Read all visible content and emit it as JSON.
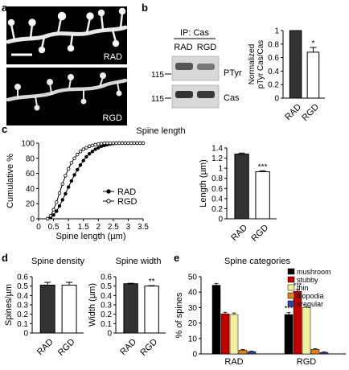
{
  "panels": {
    "a": {
      "label": "a",
      "image_labels": [
        "RAD",
        "RGD"
      ]
    },
    "b": {
      "label": "b",
      "ip_label": "IP: Cas",
      "lane_labels": [
        "RAD",
        "RGD"
      ],
      "blot_labels": [
        "PTyr",
        "Cas"
      ],
      "marker": "115"
    },
    "c": {
      "label": "c",
      "title": "Spine length"
    },
    "d": {
      "label": "d",
      "title_density": "Spine density",
      "title_width": "Spine width"
    },
    "e": {
      "label": "e",
      "title": "Spine categories"
    }
  },
  "colors": {
    "rad_bar": "#333333",
    "rgd_bar": "#ffffff",
    "mushroom": "#000000",
    "stubby": "#c00000",
    "thin": "#f3f0a0",
    "filopodia": "#d9801f",
    "irregular": "#3b3fa0"
  },
  "chart_data": [
    {
      "id": "b-bar",
      "type": "bar",
      "categories": [
        "RAD",
        "RGD"
      ],
      "values": [
        1.0,
        0.68
      ],
      "errors": [
        0.0,
        0.07
      ],
      "significance": [
        "",
        "*"
      ],
      "ylabel": "Normalized pTyr Cas/Cas",
      "ylim": [
        0,
        1
      ],
      "yticks": [
        "0",
        "0.2",
        "0.4",
        "0.6",
        "0.8",
        "1"
      ]
    },
    {
      "id": "c-cdf",
      "type": "line",
      "xlabel": "Spine length (µm)",
      "ylabel": "Cumulative %",
      "xlim": [
        0,
        3.5
      ],
      "ylim": [
        0,
        100
      ],
      "xticks": [
        "0",
        "0.5",
        "1",
        "1.5",
        "2",
        "2.5",
        "3",
        "3.5"
      ],
      "yticks": [
        "0",
        "20",
        "40",
        "60",
        "80",
        "100"
      ],
      "series": [
        {
          "name": "RAD",
          "marker": "filled",
          "x": [
            0.3,
            0.4,
            0.5,
            0.6,
            0.7,
            0.8,
            0.9,
            1.0,
            1.1,
            1.2,
            1.3,
            1.4,
            1.5,
            1.6,
            1.7,
            1.8,
            1.9,
            2.0,
            2.1,
            2.2,
            2.3,
            2.4,
            2.5,
            2.6,
            2.7,
            2.8,
            2.9,
            3.0,
            3.1,
            3.2,
            3.3,
            3.4,
            3.5
          ],
          "y": [
            0,
            2,
            5,
            10,
            17,
            25,
            33,
            42,
            50,
            58,
            65,
            71,
            77,
            82,
            86,
            89,
            92,
            94,
            96,
            97,
            98,
            99,
            99.5,
            100,
            100,
            100,
            100,
            100,
            100,
            100,
            100,
            100,
            100
          ]
        },
        {
          "name": "RGD",
          "marker": "open",
          "x": [
            0.3,
            0.4,
            0.5,
            0.6,
            0.7,
            0.8,
            0.9,
            1.0,
            1.1,
            1.2,
            1.3,
            1.4,
            1.5,
            1.6,
            1.7,
            1.8,
            1.9,
            2.0,
            2.1,
            2.2,
            2.3,
            2.4,
            2.5,
            2.6,
            2.7,
            2.8,
            2.9,
            3.0,
            3.1,
            3.2,
            3.3,
            3.4,
            3.5
          ],
          "y": [
            0,
            4,
            12,
            22,
            34,
            46,
            57,
            66,
            74,
            80,
            85,
            89,
            92,
            94,
            96,
            97,
            98,
            99,
            99.5,
            100,
            100,
            100,
            100,
            100,
            100,
            100,
            100,
            100,
            100,
            100,
            100,
            100,
            100
          ]
        }
      ]
    },
    {
      "id": "c-bar",
      "type": "bar",
      "categories": [
        "RAD",
        "RGD"
      ],
      "values": [
        1.28,
        0.93
      ],
      "errors": [
        0.02,
        0.02
      ],
      "significance": [
        "",
        "***"
      ],
      "ylabel": "Length (µm)",
      "ylim": [
        0,
        1.4
      ],
      "yticks": [
        "0",
        "0.2",
        "0.4",
        "0.6",
        "0.8",
        "1",
        "1.2",
        "1.4"
      ]
    },
    {
      "id": "d-density",
      "type": "bar",
      "categories": [
        "RAD",
        "RGD"
      ],
      "values": [
        0.51,
        0.51
      ],
      "errors": [
        0.03,
        0.03
      ],
      "significance": [
        "",
        ""
      ],
      "ylabel": "Spines/µm",
      "ylim": [
        0,
        0.6
      ],
      "yticks": [
        "0",
        "0.1",
        "0.2",
        "0.3",
        "0.4",
        "0.5",
        "0.6"
      ]
    },
    {
      "id": "d-width",
      "type": "bar",
      "categories": [
        "RAD",
        "RGD"
      ],
      "values": [
        0.525,
        0.5
      ],
      "errors": [
        0.005,
        0.005
      ],
      "significance": [
        "",
        "**"
      ],
      "ylabel": "Width (µm)",
      "ylim": [
        0,
        0.6
      ],
      "yticks": [
        "0",
        "0.1",
        "0.2",
        "0.3",
        "0.4",
        "0.5",
        "0.6"
      ]
    },
    {
      "id": "e-bar",
      "type": "bar",
      "groups": [
        "RAD",
        "RGD"
      ],
      "ylabel": "% of spines",
      "ylim": [
        0,
        50
      ],
      "yticks": [
        "0",
        "10",
        "20",
        "30",
        "40",
        "50"
      ],
      "legend_placement": "top-right",
      "series": [
        {
          "name": "mushroom",
          "values": [
            44.5,
            25.5
          ],
          "errors": [
            1.2,
            1.2
          ],
          "significance": [
            "",
            "***"
          ]
        },
        {
          "name": "stubby",
          "values": [
            26,
            40.5
          ],
          "errors": [
            1.0,
            1.2
          ],
          "significance": [
            "",
            "***"
          ]
        },
        {
          "name": "thin",
          "values": [
            25.5,
            30
          ],
          "errors": [
            1.0,
            1.0
          ],
          "significance": [
            "",
            ""
          ]
        },
        {
          "name": "filopodia",
          "values": [
            2.5,
            3
          ],
          "errors": [
            0.4,
            0.4
          ],
          "significance": [
            "",
            ""
          ]
        },
        {
          "name": "irregular",
          "values": [
            1.5,
            1
          ],
          "errors": [
            0.3,
            0.3
          ],
          "significance": [
            "",
            ""
          ]
        }
      ]
    }
  ]
}
